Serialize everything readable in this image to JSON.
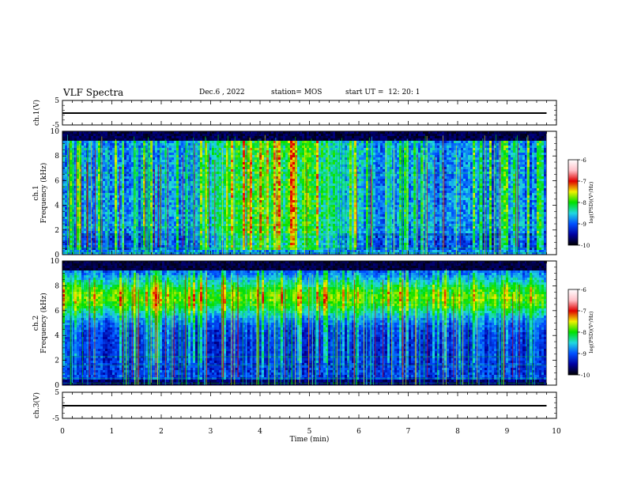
{
  "header": {
    "title": "VLF Spectra",
    "date": "Dec.6 , 2022",
    "station": "station= MOS",
    "start_ut": "start UT =  12: 20: 1"
  },
  "colors": {
    "black": "#000000",
    "dark_blue": "#0000a0",
    "blue": "#0050ff",
    "cyan": "#20d8e0",
    "green": "#00e000",
    "yellow": "#f0f000",
    "red": "#e00000",
    "pink": "#ffc0c8"
  },
  "chart_data": [
    {
      "id": "ch1-waveform",
      "type": "line",
      "ylabel": "ch.1(V)",
      "ylim": [
        -5,
        5
      ],
      "yticks": [
        "5",
        "-5"
      ],
      "xlim": [
        0,
        10
      ],
      "baseline_v": 0
    },
    {
      "id": "ch1-spectrogram",
      "type": "heatmap",
      "ylabel": "ch.1  Frequency (kHz)",
      "ylabel_lines": [
        "ch.1",
        "Frequency (kHz)"
      ],
      "ylim": [
        0,
        10
      ],
      "yticks": [
        "0",
        "2",
        "4",
        "6",
        "8",
        "10"
      ],
      "xlim": [
        0,
        10
      ],
      "data_end_min": 9.8,
      "colorbar": {
        "label": "log(PSD)(V²/Hz)",
        "range": [
          -10,
          -6
        ],
        "ticks": [
          "-6",
          "-7",
          "-8",
          "-9",
          "-10"
        ]
      }
    },
    {
      "id": "ch2-spectrogram",
      "type": "heatmap",
      "ylabel": "ch.2  Frequency (kHz)",
      "ylabel_lines": [
        "ch.2",
        "Frequency (kHz)"
      ],
      "ylim": [
        0,
        10
      ],
      "yticks": [
        "0",
        "2",
        "4",
        "6",
        "8",
        "10"
      ],
      "xlim": [
        0,
        10
      ],
      "data_end_min": 9.8,
      "colorbar": {
        "label": "log(PSD)(V²/Hz)",
        "range": [
          -10,
          -6
        ],
        "ticks": [
          "-6",
          "-7",
          "-8",
          "-9",
          "-10"
        ]
      }
    },
    {
      "id": "ch3-waveform",
      "type": "line",
      "ylabel": "ch.3(V)",
      "ylim": [
        -5,
        5
      ],
      "yticks": [
        "5",
        "-5"
      ],
      "xlim": [
        0,
        10
      ],
      "baseline_v": 0,
      "xlabel": "Time (min)",
      "xticks": [
        "0",
        "1",
        "2",
        "3",
        "4",
        "5",
        "6",
        "7",
        "8",
        "9",
        "10"
      ]
    }
  ]
}
